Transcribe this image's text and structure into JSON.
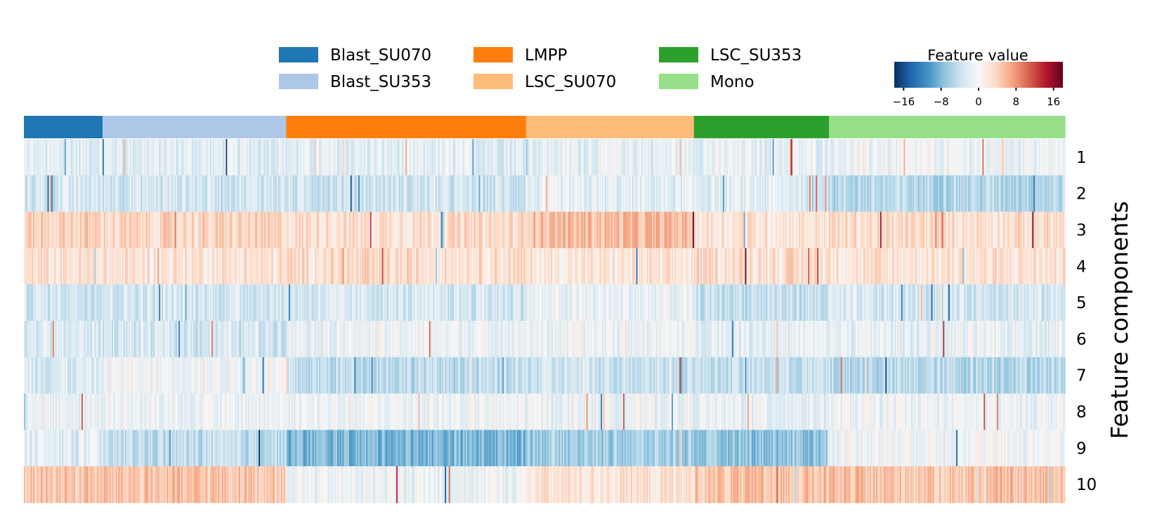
{
  "chart_data": {
    "type": "heatmap",
    "title": "",
    "xlabel": "",
    "ylabel": "Feature components",
    "rows": [
      "1",
      "2",
      "3",
      "4",
      "5",
      "6",
      "7",
      "8",
      "9",
      "10"
    ],
    "groups": [
      {
        "name": "Blast_SU070",
        "color": "#1f77b4",
        "cells": 60
      },
      {
        "name": "Blast_SU353",
        "color": "#aec7e8",
        "cells": 140
      },
      {
        "name": "LMPP",
        "color": "#ff7f0e",
        "cells": 183
      },
      {
        "name": "LSC_SU070",
        "color": "#ffbb78",
        "cells": 128
      },
      {
        "name": "LSC_SU353",
        "color": "#2ca02c",
        "cells": 103
      },
      {
        "name": "Mono",
        "color": "#98df8a",
        "cells": 180
      }
    ],
    "group_row_means": {
      "Blast_SU070": [
        -2.0,
        -3.0,
        4.0,
        2.5,
        -3.0,
        -2.5,
        -2.5,
        -1.0,
        -2.0,
        5.0
      ],
      "Blast_SU353": [
        -2.0,
        -3.0,
        3.5,
        2.5,
        -3.0,
        -3.0,
        -0.5,
        -1.0,
        -4.5,
        5.0
      ],
      "LMPP": [
        -2.0,
        -3.5,
        3.0,
        3.0,
        -3.0,
        -1.0,
        -4.5,
        -1.0,
        -8.0,
        -1.0
      ],
      "LSC_SU070": [
        -1.5,
        -2.0,
        5.5,
        2.0,
        -1.5,
        -1.0,
        -3.5,
        -1.0,
        -6.0,
        2.5
      ],
      "LSC_SU353": [
        -1.5,
        -2.0,
        2.5,
        3.0,
        -4.0,
        -1.5,
        -4.0,
        -1.5,
        -7.0,
        5.0
      ],
      "Mono": [
        -1.0,
        -5.0,
        3.0,
        2.5,
        -3.0,
        -1.5,
        -5.0,
        -1.0,
        -0.5,
        5.0
      ]
    },
    "colorbar": {
      "label": "Feature value",
      "colormap": "RdBu_r",
      "vmin": -18,
      "vmax": 18,
      "ticks": [
        -16,
        -8,
        0,
        8,
        16
      ],
      "tick_labels": [
        "−16",
        "−8",
        "0",
        "8",
        "16"
      ]
    },
    "legend_position": "top"
  }
}
